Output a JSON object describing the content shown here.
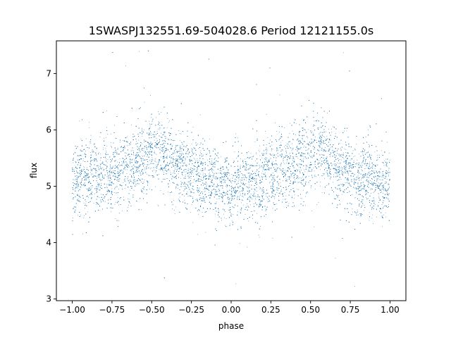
{
  "chart_data": {
    "type": "scatter",
    "title": "1SWASPJ132551.69-504028.6 Period 12121155.0s",
    "xlabel": "phase",
    "ylabel": "flux",
    "xlim": [
      -1.1,
      1.1
    ],
    "ylim": [
      2.97,
      7.58
    ],
    "grid": false,
    "legend": "none",
    "x_ticks": [
      -1.0,
      -0.75,
      -0.5,
      -0.25,
      0.0,
      0.25,
      0.5,
      0.75,
      1.0
    ],
    "x_tick_labels": [
      "−1.00",
      "−0.75",
      "−0.50",
      "−0.25",
      "0.00",
      "0.25",
      "0.50",
      "0.75",
      "1.00"
    ],
    "y_ticks": [
      3,
      4,
      5,
      6,
      7
    ],
    "y_tick_labels": [
      "3",
      "4",
      "5",
      "6",
      "7"
    ],
    "marker_color": "#1f77b4",
    "series": [
      {
        "phase_range": [
          -1.0,
          1.0
        ],
        "flux_median_curve": {
          "x": [
            -1.0,
            -0.9,
            -0.8,
            -0.7,
            -0.6,
            -0.5,
            -0.45,
            -0.4,
            -0.3,
            -0.2,
            -0.1,
            0.0,
            0.1,
            0.2,
            0.3,
            0.4,
            0.5,
            0.55,
            0.6,
            0.7,
            0.8,
            0.9,
            1.0
          ],
          "y": [
            5.2,
            5.15,
            5.2,
            5.3,
            5.4,
            5.6,
            5.65,
            5.55,
            5.3,
            5.2,
            5.05,
            4.95,
            5.05,
            5.2,
            5.3,
            5.4,
            5.6,
            5.65,
            5.55,
            5.3,
            5.15,
            5.05,
            5.0
          ]
        },
        "flux_spread": 0.35,
        "flux_extremes": [
          3.2,
          7.45
        ],
        "n_points": 14000
      }
    ]
  }
}
